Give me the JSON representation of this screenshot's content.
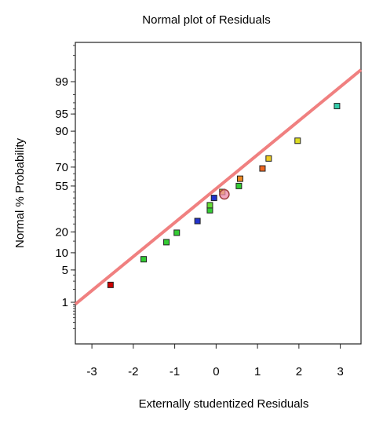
{
  "chart_data": {
    "type": "scatter",
    "title": "Normal plot of Residuals",
    "xlabel": "Externally studentized Residuals",
    "ylabel": "Normal % Probability",
    "xlim": [
      -3.4,
      3.5
    ],
    "x_ticks": [
      -3,
      -2,
      -1,
      0,
      1,
      2,
      3
    ],
    "x_tick_labels": [
      "-3",
      "-2",
      "-1",
      "0",
      "1",
      "2",
      "3"
    ],
    "y_scale": "normal-probability",
    "y_ticks": [
      1,
      5,
      10,
      20,
      55,
      70,
      90,
      95,
      99
    ],
    "y_tick_labels": [
      "1",
      "5",
      "10",
      "20",
      "55",
      "70",
      "90",
      "95",
      "99"
    ],
    "fit_line": {
      "x": [
        -3.4,
        3.5
      ],
      "y": [
        0.9,
        99.5
      ],
      "color": "#f08080"
    },
    "points": [
      {
        "x": -2.55,
        "y": 2.5,
        "color": "#cc0000"
      },
      {
        "x": -1.75,
        "y": 7.8,
        "color": "#33cc33"
      },
      {
        "x": -1.2,
        "y": 14.5,
        "color": "#33cc33"
      },
      {
        "x": -0.95,
        "y": 19.5,
        "color": "#33cc33"
      },
      {
        "x": -0.45,
        "y": 27,
        "color": "#2233cc"
      },
      {
        "x": -0.15,
        "y": 35,
        "color": "#33cc33"
      },
      {
        "x": -0.15,
        "y": 39,
        "color": "#66dd33"
      },
      {
        "x": -0.05,
        "y": 45,
        "color": "#2233cc"
      },
      {
        "x": 0.15,
        "y": 50,
        "color": "#dddd22"
      },
      {
        "x": 0.2,
        "y": 48,
        "color": "#ee88aa",
        "marker": "circle"
      },
      {
        "x": 0.55,
        "y": 55,
        "color": "#33cc33"
      },
      {
        "x": 0.58,
        "y": 61,
        "color": "#ee8822"
      },
      {
        "x": 1.12,
        "y": 69,
        "color": "#ee6622"
      },
      {
        "x": 1.27,
        "y": 76,
        "color": "#eecc22"
      },
      {
        "x": 1.97,
        "y": 86,
        "color": "#dddd22"
      },
      {
        "x": 2.92,
        "y": 96.5,
        "color": "#33ccaa"
      }
    ]
  }
}
